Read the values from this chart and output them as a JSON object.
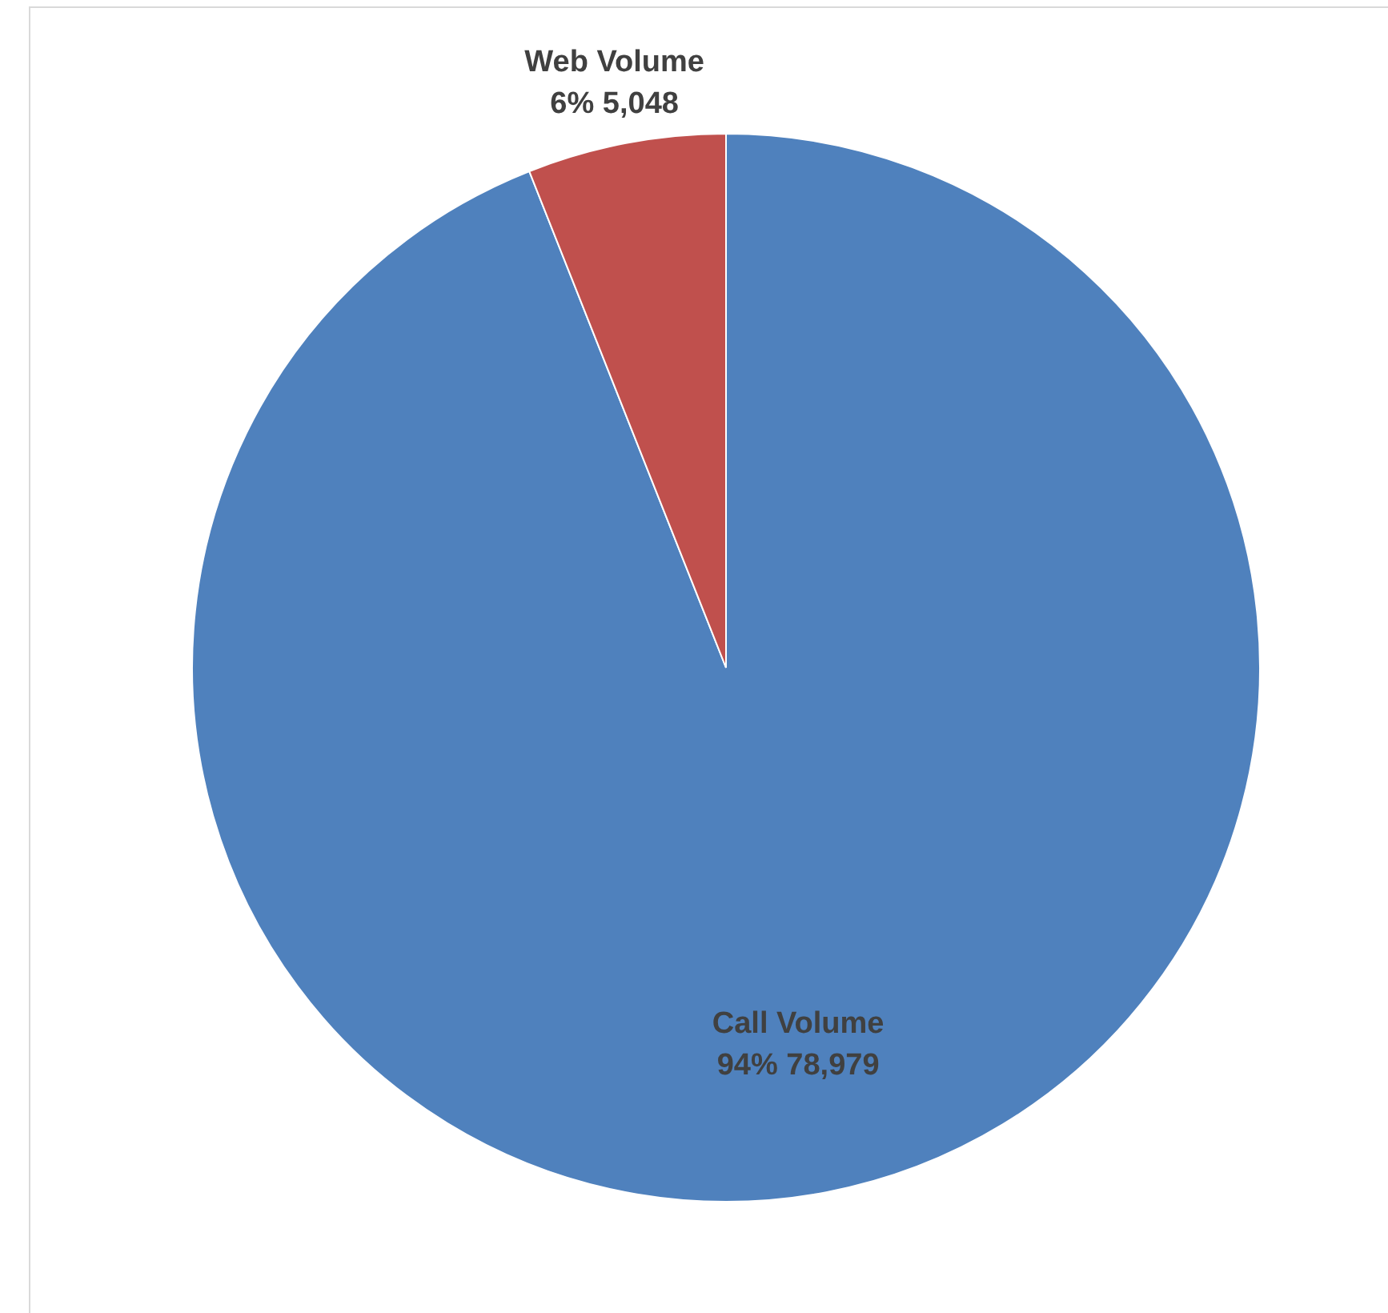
{
  "chart_data": {
    "type": "pie",
    "categories": [
      "Call Volume",
      "Web Volume"
    ],
    "values": [
      78979,
      5048
    ],
    "colors": [
      "#4f81bd",
      "#c0504d"
    ],
    "value_labels": [
      "94% 78,979",
      "6% 5,048"
    ],
    "legend": false
  }
}
